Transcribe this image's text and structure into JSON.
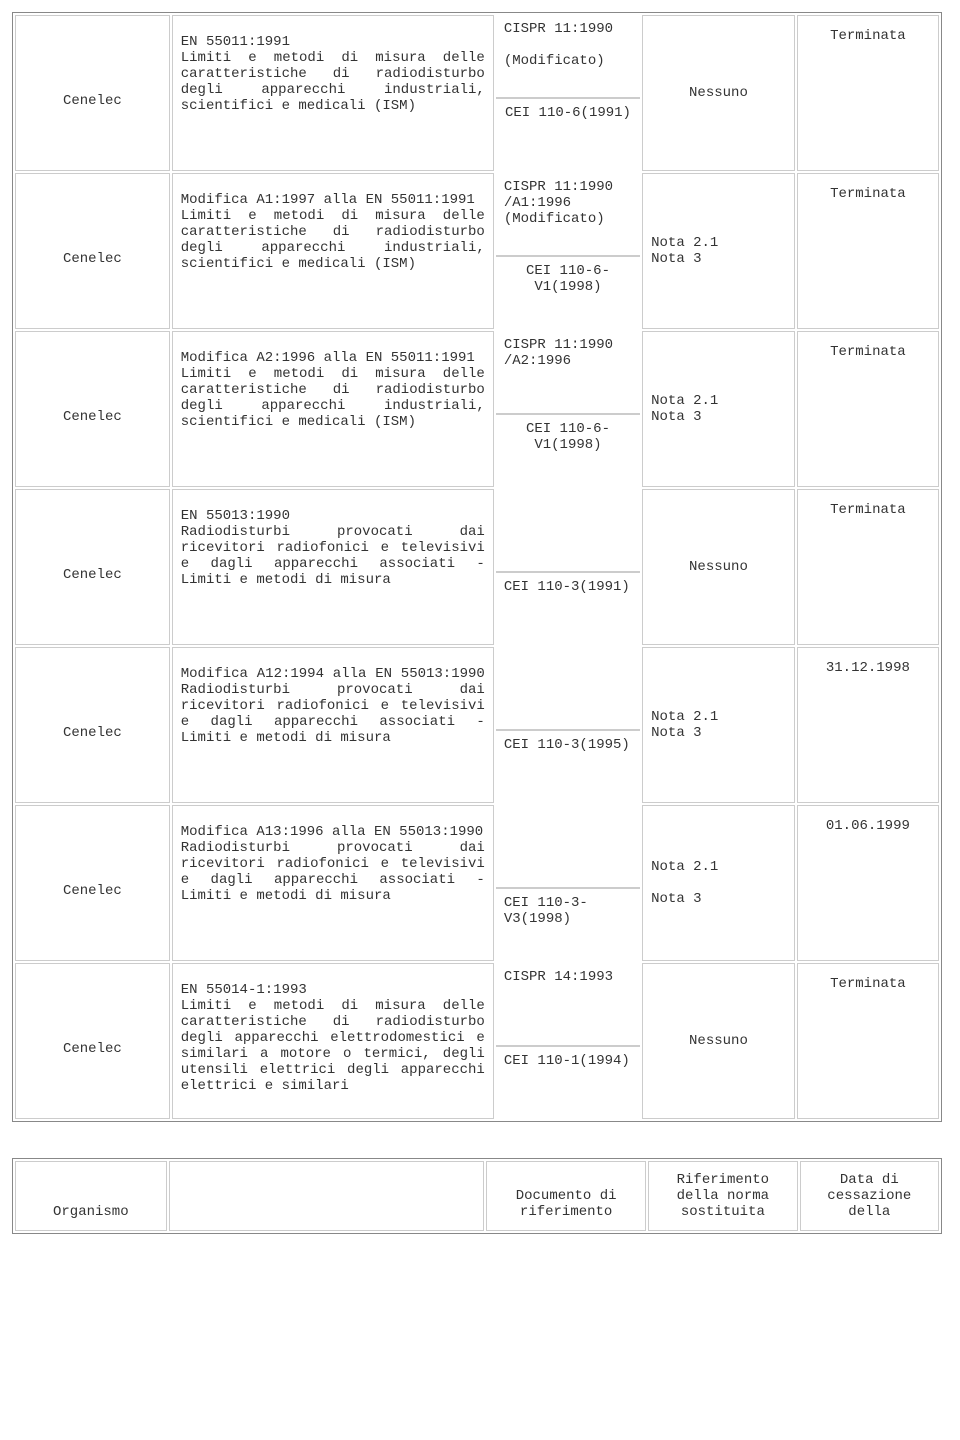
{
  "rows": [
    {
      "org": "Cenelec",
      "title": "EN 55011:1991\nLimiti e metodi di misura delle caratteristiche di radiodisturbo degli apparecchi industriali, scientifici e medicali (ISM)",
      "ref_top": "CISPR 11:1990\n\n(Modificato)",
      "ref_bot": "CEI 110-6(1991)",
      "ref_bot_align": "center",
      "note": "Nessuno",
      "note_align": "center",
      "status": "Terminata"
    },
    {
      "org": "Cenelec",
      "title": "Modifica A1:1997 alla EN 55011:1991\nLimiti e metodi di misura delle caratteristiche di radiodisturbo degli apparecchi industriali, scientifici e medicali (ISM)",
      "ref_top": "CISPR 11:1990 /A1:1996 (Modificato)",
      "ref_bot": "CEI 110-6-V1(1998)",
      "ref_bot_align": "center",
      "note": "Nota 2.1\nNota 3",
      "note_align": "left",
      "status": "Terminata"
    },
    {
      "org": "Cenelec",
      "title": "Modifica A2:1996 alla EN 55011:1991\nLimiti e metodi di misura delle caratteristiche di radiodisturbo degli apparecchi industriali, scientifici e medicali (ISM)",
      "ref_top": "CISPR 11:1990 /A2:1996",
      "ref_bot": "CEI 110-6-V1(1998)",
      "ref_bot_align": "center",
      "note": "Nota 2.1\nNota 3",
      "note_align": "left",
      "status": "Terminata"
    },
    {
      "org": "Cenelec",
      "title": "EN 55013:1990\nRadiodisturbi provocati dai ricevitori radiofonici e televisivi e dagli apparecchi associati - Limiti e metodi di misura",
      "ref_top": "",
      "ref_bot": "CEI 110-3(1991)",
      "ref_bot_align": "left",
      "note": "Nessuno",
      "note_align": "center",
      "status": "Terminata"
    },
    {
      "org": "Cenelec",
      "title": "Modifica A12:1994 alla EN 55013:1990 Radiodisturbi provocati dai ricevitori radiofonici e televisivi e dagli apparecchi associati - Limiti e metodi di misura",
      "ref_top": "",
      "ref_bot": "CEI 110-3(1995)",
      "ref_bot_align": "left",
      "note": "Nota 2.1\nNota 3",
      "note_align": "left",
      "status": "31.12.1998"
    },
    {
      "org": "Cenelec",
      "title": "Modifica A13:1996 alla EN 55013:1990\nRadiodisturbi provocati dai ricevitori radiofonici e televisivi e dagli apparecchi associati - Limiti e metodi di misura",
      "ref_top": "",
      "ref_bot": "CEI 110-3-V3(1998)",
      "ref_bot_align": "left",
      "note": "Nota 2.1\n\nNota 3",
      "note_align": "left",
      "status": "01.06.1999"
    },
    {
      "org": "Cenelec",
      "title": "EN 55014-1:1993\nLimiti e metodi di misura delle caratteristiche di radiodisturbo degli apparecchi elettrodomestici e similari a motore o termici, degli utensili elettrici degli apparecchi elettrici e similari",
      "ref_top": "CISPR 14:1993",
      "ref_bot": "CEI 110-1(1994)",
      "ref_bot_align": "left",
      "note": "Nessuno",
      "note_align": "center",
      "status": "Terminata"
    }
  ],
  "header2": {
    "c1": "Organismo",
    "c2": "",
    "c3": "Documento di riferimento",
    "c4": "Riferimento della norma sostituita",
    "c5": "Data di cessazione della"
  }
}
